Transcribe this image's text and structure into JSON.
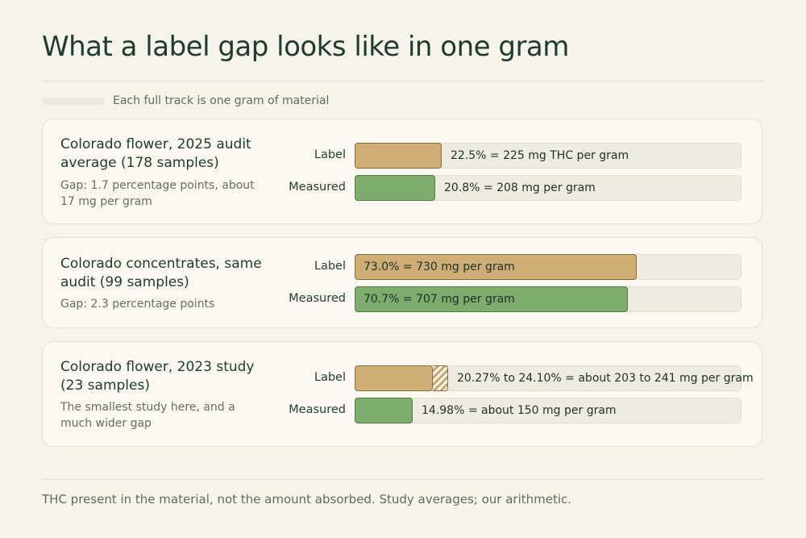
{
  "title": "What a label gap looks like in one gram",
  "legend": {
    "text": "Each full track is one gram of material"
  },
  "footer": "THC present in the material, not the amount absorbed. Study averages; our arithmetic.",
  "colors": {
    "label": "#cfad76",
    "measured": "#7dac6c",
    "track": "#eeebe1"
  },
  "chart_data": {
    "type": "bar",
    "orientation": "horizontal",
    "unit": "mg per gram",
    "xlim": [
      0,
      1000
    ],
    "row_labels": {
      "label": "Label",
      "measured": "Measured"
    },
    "groups": [
      {
        "title": "Colorado flower, 2025 audit average (178 samples)",
        "note": "Gap: 1.7 percentage points, about 17 mg per gram",
        "label": {
          "value": 225,
          "text": "22.5% = 225 mg THC per gram"
        },
        "measured": {
          "value": 208,
          "text": "20.8% = 208 mg per gram"
        }
      },
      {
        "title": "Colorado concentrates, same audit (99 samples)",
        "note": "Gap: 2.3 percentage points",
        "label": {
          "value": 730,
          "text": "73.0% = 730 mg per gram"
        },
        "measured": {
          "value": 707,
          "text": "70.7% = 707 mg per gram"
        }
      },
      {
        "title": "Colorado flower, 2023 study (23 samples)",
        "note": "The smallest study here, and a much wider gap",
        "label": {
          "value": [
            203,
            241
          ],
          "text": "20.27% to 24.10% = about 203 to 241 mg per gram"
        },
        "measured": {
          "value": 150,
          "text": "14.98% = about 150 mg per gram"
        }
      }
    ]
  }
}
